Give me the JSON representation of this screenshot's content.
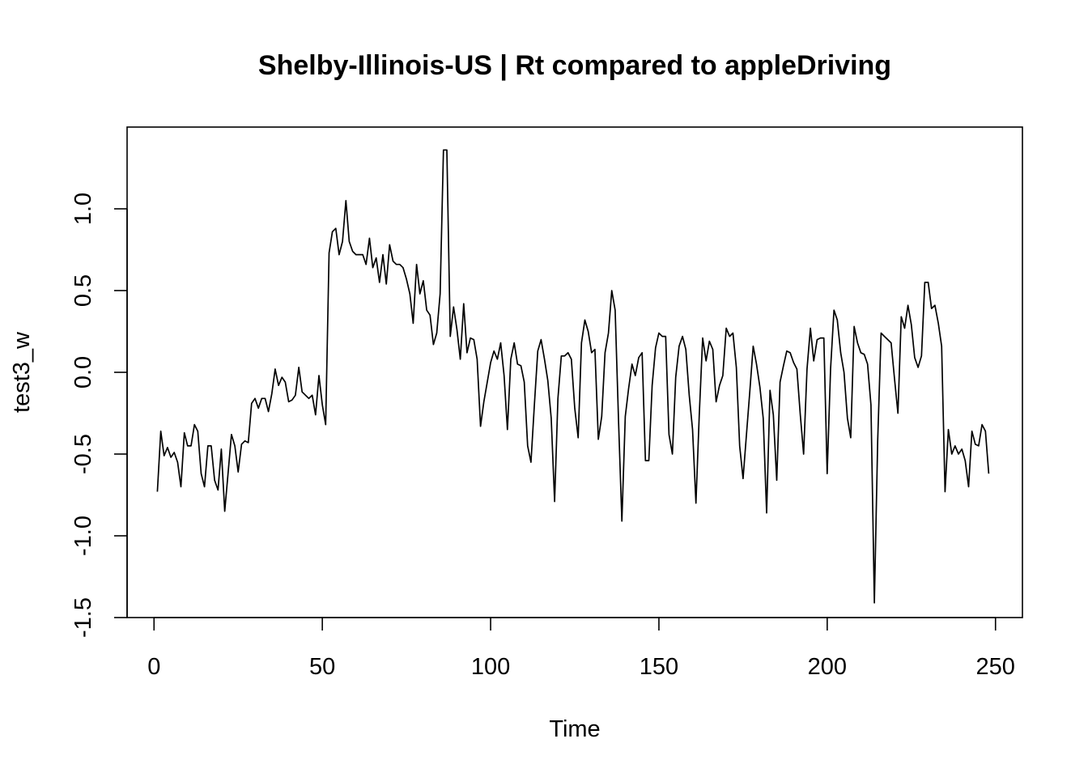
{
  "chart_data": {
    "type": "line",
    "title": "Shelby-Illinois-US | Rt compared to appleDriving",
    "xlabel": "Time",
    "ylabel": "test3_w",
    "xlim": [
      -8,
      258
    ],
    "ylim": [
      -1.5,
      1.5
    ],
    "x_ticks": [
      0,
      50,
      100,
      150,
      200,
      250
    ],
    "x_tick_labels": [
      "0",
      "50",
      "100",
      "150",
      "200",
      "250"
    ],
    "y_ticks": [
      -1.5,
      -1.0,
      -0.5,
      0.0,
      0.5,
      1.0
    ],
    "y_tick_labels": [
      "-1.5",
      "-1.0",
      "-0.5",
      "0.0",
      "0.5",
      "1.0"
    ],
    "series": [
      {
        "name": "test3_w",
        "x_start": 1,
        "values": [
          -0.73,
          -0.36,
          -0.51,
          -0.46,
          -0.52,
          -0.49,
          -0.55,
          -0.7,
          -0.37,
          -0.45,
          -0.45,
          -0.32,
          -0.36,
          -0.62,
          -0.7,
          -0.45,
          -0.45,
          -0.66,
          -0.72,
          -0.47,
          -0.85,
          -0.62,
          -0.38,
          -0.45,
          -0.61,
          -0.44,
          -0.42,
          -0.43,
          -0.19,
          -0.16,
          -0.22,
          -0.16,
          -0.16,
          -0.24,
          -0.13,
          0.02,
          -0.08,
          -0.03,
          -0.06,
          -0.18,
          -0.17,
          -0.14,
          0.03,
          -0.12,
          -0.14,
          -0.16,
          -0.14,
          -0.26,
          -0.02,
          -0.2,
          -0.32,
          0.73,
          0.86,
          0.88,
          0.72,
          0.8,
          1.05,
          0.8,
          0.74,
          0.72,
          0.72,
          0.72,
          0.66,
          0.82,
          0.64,
          0.7,
          0.55,
          0.72,
          0.54,
          0.78,
          0.68,
          0.66,
          0.66,
          0.64,
          0.57,
          0.48,
          0.3,
          0.66,
          0.48,
          0.56,
          0.38,
          0.35,
          0.17,
          0.24,
          0.48,
          1.36,
          1.36,
          0.22,
          0.4,
          0.26,
          0.08,
          0.42,
          0.12,
          0.21,
          0.2,
          0.08,
          -0.33,
          -0.18,
          -0.06,
          0.06,
          0.13,
          0.08,
          0.18,
          -0.02,
          -0.35,
          0.08,
          0.18,
          0.05,
          0.04,
          -0.06,
          -0.45,
          -0.55,
          -0.2,
          0.13,
          0.2,
          0.08,
          -0.05,
          -0.28,
          -0.79,
          -0.16,
          0.1,
          0.1,
          0.12,
          0.08,
          -0.22,
          -0.4,
          0.18,
          0.32,
          0.25,
          0.12,
          0.14,
          -0.41,
          -0.27,
          0.12,
          0.24,
          0.5,
          0.38,
          -0.3,
          -0.91,
          -0.27,
          -0.1,
          0.05,
          -0.02,
          0.09,
          0.12,
          -0.54,
          -0.54,
          -0.08,
          0.15,
          0.24,
          0.22,
          0.22,
          -0.38,
          -0.5,
          -0.03,
          0.16,
          0.22,
          0.14,
          -0.14,
          -0.35,
          -0.8,
          -0.26,
          0.21,
          0.07,
          0.19,
          0.14,
          -0.18,
          -0.08,
          -0.02,
          0.27,
          0.22,
          0.24,
          0.03,
          -0.45,
          -0.65,
          -0.38,
          -0.12,
          0.16,
          0.05,
          -0.09,
          -0.28,
          -0.86,
          -0.11,
          -0.26,
          -0.66,
          -0.06,
          0.04,
          0.13,
          0.12,
          0.06,
          0.02,
          -0.26,
          -0.5,
          0.02,
          0.27,
          0.07,
          0.2,
          0.21,
          0.21,
          -0.62,
          0.02,
          0.38,
          0.32,
          0.12,
          0.0,
          -0.28,
          -0.4,
          0.28,
          0.18,
          0.12,
          0.11,
          0.05,
          -0.2,
          -1.41,
          -0.42,
          0.24,
          0.22,
          0.2,
          0.18,
          -0.04,
          -0.25,
          0.34,
          0.27,
          0.41,
          0.29,
          0.09,
          0.03,
          0.1,
          0.55,
          0.55,
          0.39,
          0.41,
          0.3,
          0.16,
          -0.73,
          -0.35,
          -0.5,
          -0.45,
          -0.5,
          -0.47,
          -0.54,
          -0.7,
          -0.36,
          -0.44,
          -0.45,
          -0.32,
          -0.36,
          -0.62
        ]
      }
    ]
  }
}
